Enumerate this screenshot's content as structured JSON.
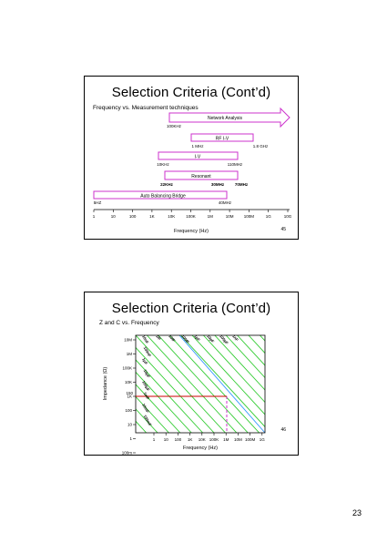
{
  "slides": [
    {
      "title": "Selection Criteria (Cont’d)",
      "subtitle": "Frequency vs. Measurement techniques",
      "slide_number": "45",
      "techniques": [
        {
          "label": "Network Analysis",
          "start_label": "100KHz",
          "end_label": ""
        },
        {
          "label": "RF I-V",
          "start_label": "1 MHz",
          "end_label": "1.8 GHz"
        },
        {
          "label": "I-V",
          "start_label": "10KHz",
          "end_label": "110MHz"
        },
        {
          "label": "Resonant",
          "start_label": "22KHz",
          "end_label": "30MHz",
          "extra_label": "70MHz"
        },
        {
          "label": "Auto Balancing Bridge",
          "start_label": "5HZ",
          "end_label": "40MHz"
        }
      ],
      "axis": {
        "ticks": [
          "1",
          "10",
          "100",
          "1K",
          "10K",
          "100K",
          "1M",
          "10M",
          "100M",
          "1G",
          "10G"
        ],
        "label": "Frequency (Hz)"
      }
    },
    {
      "title": "Selection Criteria (Cont’d)",
      "subtitle": "Z and C vs. Frequency",
      "slide_number": "46",
      "y_axis_label": "Impedance (Ω)",
      "y_ticks": [
        "10M",
        "1M",
        "100K",
        "10K",
        "1K",
        "100",
        "10",
        "1",
        "100m"
      ],
      "y_extra_tick": "150",
      "x_ticks": [
        "1",
        "10",
        "100",
        "1K",
        "10K",
        "100K",
        "1M",
        "10M",
        "100M",
        "1G"
      ],
      "x_axis_label": "Frequency (Hz)",
      "capacitance_top": [
        "1fF",
        "10fF",
        "100fF",
        "1pF",
        "10pF",
        "100pF",
        "1nF"
      ],
      "capacitance_left": [
        "10nF",
        "100nF",
        "1μF",
        "10μF",
        "100μF",
        "1mF",
        "10mF",
        "100mF"
      ]
    }
  ],
  "page_number": "23",
  "colors": {
    "technique_bar": "#cc33cc",
    "capacitance_lines": "#33cc33",
    "inductance_line": "#3399ff",
    "marker_line": "#cc0000",
    "marker_dashed": "#cc33cc"
  }
}
